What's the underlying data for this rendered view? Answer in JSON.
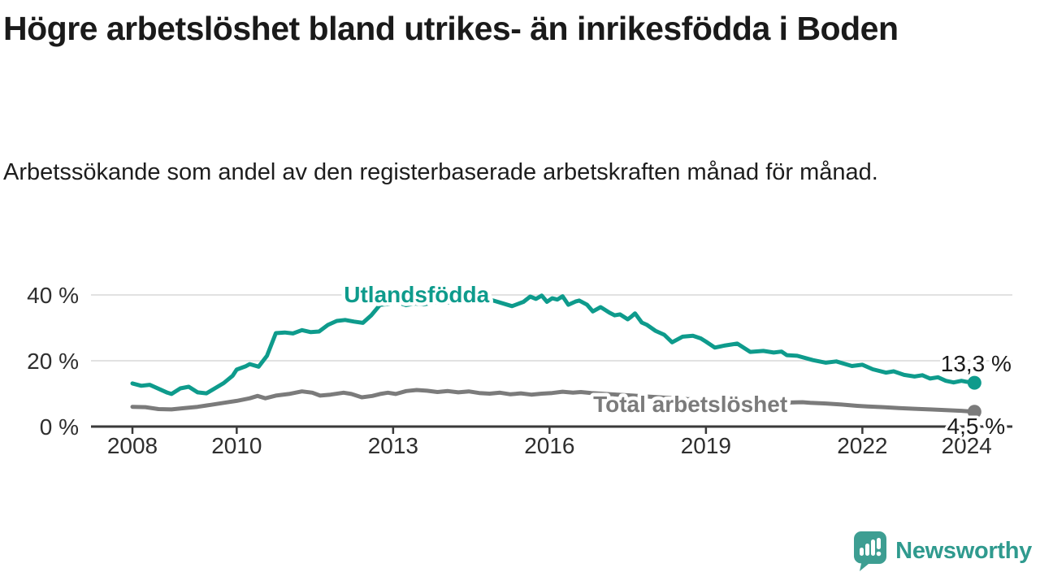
{
  "header": {
    "title": "Högre arbetslöshet bland utrikes- än inrikesfödda i Boden",
    "subtitle": "Arbetssökande som andel av den registerbaserade arbetskraften månad för månad."
  },
  "footer": {
    "brand": "Newsworthy",
    "brand_color": "#2f9a8e",
    "logo_icon": "speech-bubble-bar-chart-icon"
  },
  "colors": {
    "accent_teal": "#0e9b8c",
    "series_gray": "#7b7b7b",
    "grid": "#d8d8d8",
    "axis": "#3a3a3a",
    "tick_label": "#2e2e2e",
    "value_label": "#1a1a1a"
  },
  "chart_data": {
    "type": "line",
    "title": "Högre arbetslöshet bland utrikes- än inrikesfödda i Boden",
    "xlabel": "",
    "ylabel": "Arbetssökande som andel av den registerbaserade arbetskraften",
    "unit": "%",
    "x_range": [
      2007.9,
      2025.0
    ],
    "ylim": [
      0,
      44
    ],
    "grid": "horizontal",
    "legend_position": "inline-labels",
    "y_ticks": [
      {
        "v": 0,
        "label": "0 %"
      },
      {
        "v": 20,
        "label": "20 %"
      },
      {
        "v": 40,
        "label": "40 %"
      }
    ],
    "x_ticks": [
      {
        "year": 2008,
        "label": "2008"
      },
      {
        "year": 2010,
        "label": "2010"
      },
      {
        "year": 2013,
        "label": "2013"
      },
      {
        "year": 2016,
        "label": "2016"
      },
      {
        "year": 2019,
        "label": "2019"
      },
      {
        "year": 2022,
        "label": "2022"
      },
      {
        "year": 2024,
        "label": "2024"
      }
    ],
    "series": [
      {
        "name": "Utlandsfödda",
        "color": "#0e9b8c",
        "line_width": 5,
        "label": {
          "text": "Utlandsfödda",
          "x_year": 2013.45,
          "y_pct": 40.2,
          "anchor": "middle"
        },
        "end_label": {
          "text": "13,3 %",
          "dy": -14
        },
        "end_value": 13.3,
        "points": [
          [
            2008.0,
            13.1
          ],
          [
            2008.17,
            12.4
          ],
          [
            2008.33,
            12.7
          ],
          [
            2008.5,
            11.5
          ],
          [
            2008.67,
            10.3
          ],
          [
            2008.75,
            9.9
          ],
          [
            2008.92,
            11.6
          ],
          [
            2009.08,
            12.1
          ],
          [
            2009.25,
            10.4
          ],
          [
            2009.42,
            10.1
          ],
          [
            2009.58,
            11.6
          ],
          [
            2009.75,
            13.2
          ],
          [
            2009.92,
            15.4
          ],
          [
            2010.0,
            17.3
          ],
          [
            2010.17,
            18.3
          ],
          [
            2010.25,
            19.0
          ],
          [
            2010.42,
            18.2
          ],
          [
            2010.58,
            21.5
          ],
          [
            2010.75,
            28.4
          ],
          [
            2010.92,
            28.6
          ],
          [
            2011.08,
            28.3
          ],
          [
            2011.25,
            29.3
          ],
          [
            2011.42,
            28.7
          ],
          [
            2011.58,
            28.9
          ],
          [
            2011.75,
            30.9
          ],
          [
            2011.92,
            32.1
          ],
          [
            2012.08,
            32.4
          ],
          [
            2012.25,
            31.9
          ],
          [
            2012.42,
            31.5
          ],
          [
            2012.58,
            33.8
          ],
          [
            2012.75,
            37.0
          ],
          [
            2012.92,
            37.2
          ],
          [
            2013.08,
            37.8
          ],
          [
            2013.25,
            36.9
          ],
          [
            2013.42,
            37.4
          ],
          [
            2013.58,
            37.1
          ],
          [
            2013.75,
            37.6
          ],
          [
            2013.92,
            38.0
          ],
          [
            2014.08,
            37.7
          ],
          [
            2014.25,
            38.2
          ],
          [
            2014.42,
            37.9
          ],
          [
            2014.58,
            38.4
          ],
          [
            2014.75,
            38.1
          ],
          [
            2014.92,
            38.3
          ],
          [
            2015.17,
            37.1
          ],
          [
            2015.28,
            36.6
          ],
          [
            2015.5,
            37.9
          ],
          [
            2015.63,
            39.5
          ],
          [
            2015.74,
            38.8
          ],
          [
            2015.85,
            39.8
          ],
          [
            2015.95,
            37.9
          ],
          [
            2016.05,
            39.0
          ],
          [
            2016.15,
            38.6
          ],
          [
            2016.25,
            39.6
          ],
          [
            2016.36,
            37.0
          ],
          [
            2016.5,
            38.0
          ],
          [
            2016.57,
            38.3
          ],
          [
            2016.72,
            37.0
          ],
          [
            2016.83,
            35.0
          ],
          [
            2016.98,
            36.3
          ],
          [
            2017.03,
            35.8
          ],
          [
            2017.15,
            34.6
          ],
          [
            2017.25,
            33.8
          ],
          [
            2017.35,
            34.1
          ],
          [
            2017.5,
            32.6
          ],
          [
            2017.56,
            33.3
          ],
          [
            2017.64,
            34.4
          ],
          [
            2017.77,
            31.6
          ],
          [
            2017.87,
            30.9
          ],
          [
            2018.03,
            29.1
          ],
          [
            2018.2,
            27.9
          ],
          [
            2018.35,
            25.6
          ],
          [
            2018.55,
            27.3
          ],
          [
            2018.75,
            27.6
          ],
          [
            2018.9,
            26.8
          ],
          [
            2019.0,
            25.8
          ],
          [
            2019.17,
            24.0
          ],
          [
            2019.35,
            24.6
          ],
          [
            2019.6,
            25.2
          ],
          [
            2019.85,
            22.7
          ],
          [
            2020.1,
            23.0
          ],
          [
            2020.3,
            22.5
          ],
          [
            2020.45,
            22.8
          ],
          [
            2020.55,
            21.7
          ],
          [
            2020.75,
            21.5
          ],
          [
            2021.05,
            20.2
          ],
          [
            2021.3,
            19.4
          ],
          [
            2021.5,
            19.8
          ],
          [
            2021.8,
            18.4
          ],
          [
            2022.0,
            18.8
          ],
          [
            2022.2,
            17.4
          ],
          [
            2022.45,
            16.4
          ],
          [
            2022.6,
            16.8
          ],
          [
            2022.8,
            15.7
          ],
          [
            2023.0,
            15.2
          ],
          [
            2023.15,
            15.6
          ],
          [
            2023.3,
            14.6
          ],
          [
            2023.45,
            15.0
          ],
          [
            2023.6,
            13.9
          ],
          [
            2023.75,
            13.4
          ],
          [
            2023.9,
            13.9
          ],
          [
            2024.0,
            13.6
          ],
          [
            2024.15,
            13.3
          ]
        ]
      },
      {
        "name": "Total arbetslöshet",
        "color": "#7b7b7b",
        "line_width": 5,
        "label": {
          "text": "Total arbetslöshet",
          "x_year": 2018.7,
          "y_pct": 6.9,
          "anchor": "middle"
        },
        "end_label": {
          "text": "4,5 %",
          "dy": 27
        },
        "end_value": 4.5,
        "points": [
          [
            2008.0,
            6.0
          ],
          [
            2008.25,
            5.9
          ],
          [
            2008.5,
            5.3
          ],
          [
            2008.75,
            5.2
          ],
          [
            2009.0,
            5.6
          ],
          [
            2009.25,
            6.0
          ],
          [
            2009.5,
            6.6
          ],
          [
            2009.75,
            7.2
          ],
          [
            2010.0,
            7.8
          ],
          [
            2010.25,
            8.6
          ],
          [
            2010.4,
            9.3
          ],
          [
            2010.55,
            8.6
          ],
          [
            2010.75,
            9.4
          ],
          [
            2011.0,
            9.9
          ],
          [
            2011.25,
            10.7
          ],
          [
            2011.45,
            10.3
          ],
          [
            2011.6,
            9.4
          ],
          [
            2011.8,
            9.7
          ],
          [
            2012.05,
            10.3
          ],
          [
            2012.2,
            9.9
          ],
          [
            2012.4,
            8.9
          ],
          [
            2012.6,
            9.3
          ],
          [
            2012.75,
            9.9
          ],
          [
            2012.9,
            10.3
          ],
          [
            2013.05,
            9.9
          ],
          [
            2013.25,
            10.8
          ],
          [
            2013.45,
            11.1
          ],
          [
            2013.65,
            10.9
          ],
          [
            2013.85,
            10.5
          ],
          [
            2014.05,
            10.8
          ],
          [
            2014.25,
            10.4
          ],
          [
            2014.45,
            10.7
          ],
          [
            2014.65,
            10.2
          ],
          [
            2014.85,
            10.0
          ],
          [
            2015.05,
            10.3
          ],
          [
            2015.25,
            9.8
          ],
          [
            2015.45,
            10.1
          ],
          [
            2015.65,
            9.7
          ],
          [
            2015.85,
            10.0
          ],
          [
            2016.05,
            10.2
          ],
          [
            2016.25,
            10.6
          ],
          [
            2016.45,
            10.3
          ],
          [
            2016.6,
            10.5
          ],
          [
            2016.8,
            10.2
          ],
          [
            2017.0,
            10.0
          ],
          [
            2017.3,
            9.7
          ],
          [
            2017.6,
            9.4
          ],
          [
            2017.9,
            9.1
          ],
          [
            2018.2,
            8.8
          ],
          [
            2018.5,
            8.5
          ],
          [
            2018.8,
            8.2
          ],
          [
            2019.1,
            8.0
          ],
          [
            2019.4,
            7.8
          ],
          [
            2019.7,
            7.6
          ],
          [
            2020.0,
            7.4
          ],
          [
            2020.3,
            7.2
          ],
          [
            2020.6,
            7.3
          ],
          [
            2020.85,
            7.4
          ],
          [
            2021.0,
            7.2
          ],
          [
            2021.3,
            7.0
          ],
          [
            2021.6,
            6.7
          ],
          [
            2021.9,
            6.3
          ],
          [
            2022.1,
            6.1
          ],
          [
            2022.4,
            5.9
          ],
          [
            2022.7,
            5.6
          ],
          [
            2023.0,
            5.4
          ],
          [
            2023.3,
            5.2
          ],
          [
            2023.6,
            5.0
          ],
          [
            2023.9,
            4.8
          ],
          [
            2024.15,
            4.5
          ]
        ]
      }
    ]
  }
}
